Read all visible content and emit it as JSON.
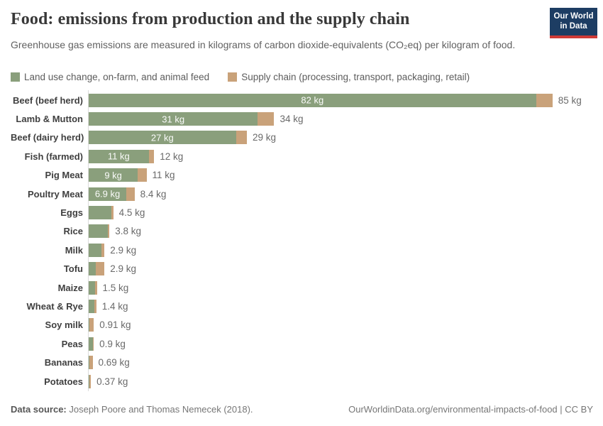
{
  "header": {
    "title": "Food: emissions from production and the supply chain",
    "subtitle": "Greenhouse gas emissions are measured in kilograms of carbon dioxide-equivalents (CO₂eq) per kilogram of food."
  },
  "logo": {
    "line1": "Our World",
    "line2": "in Data",
    "bg_color": "#1d3d63",
    "accent_color": "#cf3a36"
  },
  "legend": {
    "items": [
      {
        "label": "Land use change, on-farm, and animal feed",
        "color": "#8a9f7c"
      },
      {
        "label": "Supply chain (processing, transport, packaging, retail)",
        "color": "#c9a27a"
      }
    ]
  },
  "chart_data": {
    "type": "bar",
    "orientation": "horizontal",
    "stacked": true,
    "unit": "kg CO₂eq per kg of food",
    "xlim": [
      0,
      85
    ],
    "grid": false,
    "series_names": [
      "Land use change, on-farm, and animal feed",
      "Supply chain (processing, transport, packaging, retail)"
    ],
    "colors": {
      "land_use": "#8a9f7c",
      "supply_chain": "#c9a27a"
    },
    "rows": [
      {
        "category": "Beef (beef herd)",
        "land_use": 82,
        "supply_chain": 3,
        "inside_label": "82 kg",
        "total_label": "85 kg"
      },
      {
        "category": "Lamb & Mutton",
        "land_use": 31,
        "supply_chain": 3,
        "inside_label": "31 kg",
        "total_label": "34 kg"
      },
      {
        "category": "Beef (dairy herd)",
        "land_use": 27,
        "supply_chain": 2,
        "inside_label": "27 kg",
        "total_label": "29 kg"
      },
      {
        "category": "Fish (farmed)",
        "land_use": 11,
        "supply_chain": 1,
        "inside_label": "11 kg",
        "total_label": "12 kg"
      },
      {
        "category": "Pig Meat",
        "land_use": 9,
        "supply_chain": 1.6,
        "inside_label": "9 kg",
        "total_label": "11 kg"
      },
      {
        "category": "Poultry Meat",
        "land_use": 6.9,
        "supply_chain": 1.5,
        "inside_label": "6.9 kg",
        "total_label": "8.4 kg"
      },
      {
        "category": "Eggs",
        "land_use": 4.1,
        "supply_chain": 0.4,
        "inside_label": null,
        "total_label": "4.5 kg"
      },
      {
        "category": "Rice",
        "land_use": 3.5,
        "supply_chain": 0.3,
        "inside_label": null,
        "total_label": "3.8 kg"
      },
      {
        "category": "Milk",
        "land_use": 2.3,
        "supply_chain": 0.6,
        "inside_label": null,
        "total_label": "2.9 kg"
      },
      {
        "category": "Tofu",
        "land_use": 1.3,
        "supply_chain": 1.6,
        "inside_label": null,
        "total_label": "2.9 kg"
      },
      {
        "category": "Maize",
        "land_use": 1.2,
        "supply_chain": 0.3,
        "inside_label": null,
        "total_label": "1.5 kg"
      },
      {
        "category": "Wheat & Rye",
        "land_use": 1.1,
        "supply_chain": 0.3,
        "inside_label": null,
        "total_label": "1.4 kg"
      },
      {
        "category": "Soy milk",
        "land_use": 0.1,
        "supply_chain": 0.81,
        "inside_label": null,
        "total_label": "0.91 kg"
      },
      {
        "category": "Peas",
        "land_use": 0.8,
        "supply_chain": 0.1,
        "inside_label": null,
        "total_label": "0.9 kg"
      },
      {
        "category": "Bananas",
        "land_use": 0.1,
        "supply_chain": 0.59,
        "inside_label": null,
        "total_label": "0.69 kg"
      },
      {
        "category": "Potatoes",
        "land_use": 0.1,
        "supply_chain": 0.27,
        "inside_label": null,
        "total_label": "0.37 kg"
      }
    ]
  },
  "footer": {
    "source_label": "Data source:",
    "source_text": " Joseph Poore and Thomas Nemecek (2018).",
    "credit": "OurWorldinData.org/environmental-impacts-of-food | CC BY"
  }
}
